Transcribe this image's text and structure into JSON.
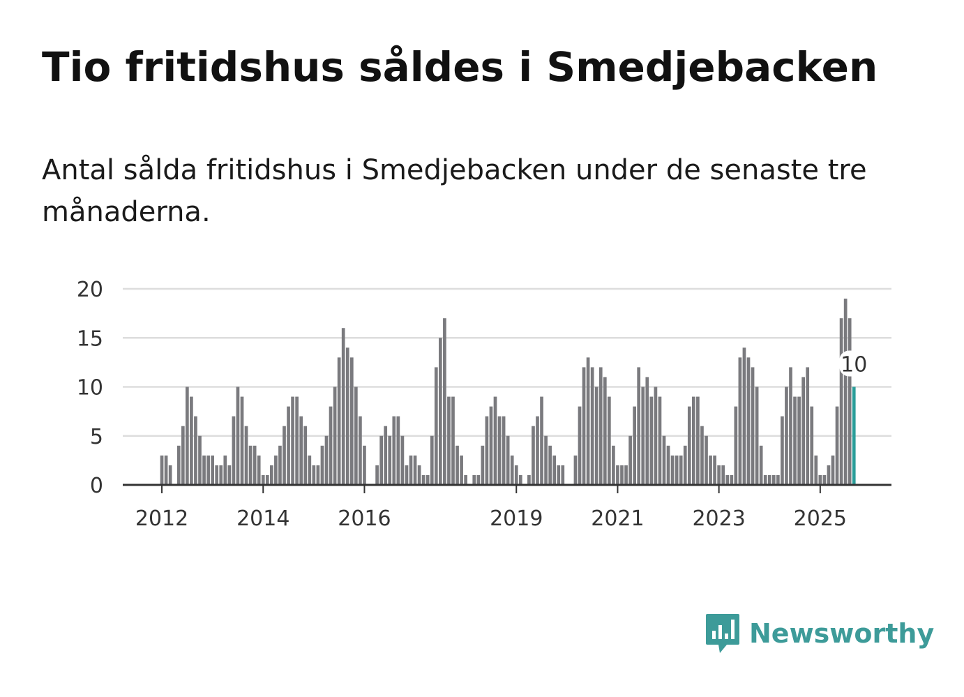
{
  "header": {
    "title": "Tio fritidshus såldes i Smedjebacken",
    "subtitle": "Antal sålda fritidshus i Smedjebacken under de senaste tre månaderna."
  },
  "brand": {
    "name": "Newsworthy",
    "logo_icon": "bar-chart-speech-bubble-icon"
  },
  "colors": {
    "bar": "#7a7a7e",
    "highlight": "#2a9d99",
    "grid": "#dddddd",
    "axis": "#333333",
    "brand": "#3d9b99"
  },
  "chart_data": {
    "type": "bar",
    "title": "Tio fritidshus såldes i Smedjebacken",
    "xlabel": "",
    "ylabel": "",
    "ylim": [
      0,
      20
    ],
    "yticks": [
      0,
      5,
      10,
      15,
      20
    ],
    "xticks": [
      "2012",
      "2014",
      "2016",
      "2019",
      "2021",
      "2023",
      "2025"
    ],
    "start": "2011-09",
    "frequency": "monthly",
    "values": [
      0,
      0,
      0,
      0,
      3,
      3,
      2,
      0,
      4,
      6,
      10,
      9,
      7,
      5,
      3,
      3,
      3,
      2,
      2,
      3,
      2,
      7,
      10,
      9,
      6,
      4,
      4,
      3,
      1,
      1,
      2,
      3,
      4,
      6,
      8,
      9,
      9,
      7,
      6,
      3,
      2,
      2,
      4,
      5,
      8,
      10,
      13,
      16,
      14,
      13,
      10,
      7,
      4,
      0,
      0,
      2,
      5,
      6,
      5,
      7,
      7,
      5,
      2,
      3,
      3,
      2,
      1,
      1,
      5,
      12,
      15,
      17,
      9,
      9,
      4,
      3,
      1,
      0,
      1,
      1,
      4,
      7,
      8,
      9,
      7,
      7,
      5,
      3,
      2,
      1,
      0,
      1,
      6,
      7,
      9,
      5,
      4,
      3,
      2,
      2,
      0,
      0,
      3,
      8,
      12,
      13,
      12,
      10,
      12,
      11,
      9,
      4,
      2,
      2,
      2,
      5,
      8,
      12,
      10,
      11,
      9,
      10,
      9,
      5,
      4,
      3,
      3,
      3,
      4,
      8,
      9,
      9,
      6,
      5,
      3,
      3,
      2,
      2,
      1,
      1,
      8,
      13,
      14,
      13,
      12,
      10,
      4,
      1,
      1,
      1,
      1,
      7,
      10,
      12,
      9,
      9,
      11,
      12,
      8,
      3,
      1,
      1,
      2,
      3,
      8,
      17,
      19,
      17,
      10
    ],
    "highlight_last": true,
    "annotation": {
      "label": "10",
      "target": "last"
    }
  }
}
